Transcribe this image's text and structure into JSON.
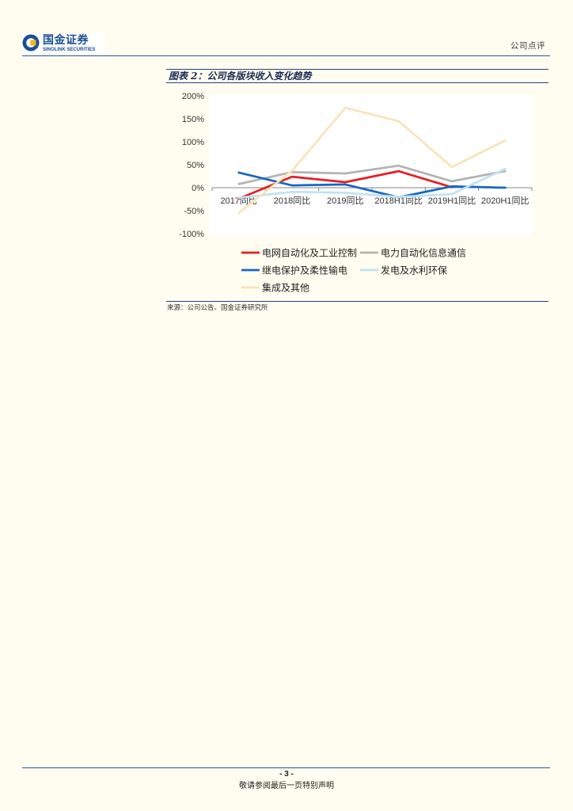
{
  "header": {
    "brand_cn": "国金证券",
    "brand_en": "SINOLINK SECURITIES",
    "logo_icon": "sinolink-logo-icon",
    "report_type": "公司点评"
  },
  "figure": {
    "source": "来源：公司公告、国金证券研究所"
  },
  "chart_data": {
    "type": "line",
    "title": "图表 2：公司各版块收入变化趋势",
    "categories": [
      "2017同比",
      "2018同比",
      "2019同比",
      "2018H1同比",
      "2019H1同比",
      "2020H1同比"
    ],
    "ylim": [
      -100,
      200
    ],
    "yticks": [
      200,
      150,
      100,
      50,
      0,
      -50,
      -100
    ],
    "ytick_labels": [
      "200%",
      "150%",
      "100%",
      "50%",
      "0%",
      "-50%",
      "-100%"
    ],
    "grid": false,
    "legend_position": "bottom",
    "series": [
      {
        "name": "电网自动化及工业控制",
        "color": "#e61e25",
        "values": [
          -24,
          24,
          12,
          36,
          1,
          null
        ]
      },
      {
        "name": "电力自动化信息通信",
        "color": "#b3b3b3",
        "values": [
          8,
          34,
          31,
          48,
          14,
          36
        ]
      },
      {
        "name": "继电保护及柔性输电",
        "color": "#1667c0",
        "values": [
          33,
          5,
          7,
          -21,
          3,
          0
        ]
      },
      {
        "name": "发电及水利环保",
        "color": "#bfe2f3",
        "values": [
          -22,
          -9,
          -11,
          -20,
          -14,
          41
        ]
      },
      {
        "name": "集成及其他",
        "color": "#f8e4b8",
        "values": [
          -55,
          37,
          174,
          145,
          45,
          103
        ]
      }
    ]
  },
  "footer": {
    "page_number": "- 3 -",
    "disclaimer": "敬请参阅最后一页特别声明"
  },
  "colors": {
    "brand_blue": "#1a4f95",
    "brand_gold": "#f2b418",
    "rule_blue": "#2b5797",
    "page_background": "#fffdf0"
  }
}
